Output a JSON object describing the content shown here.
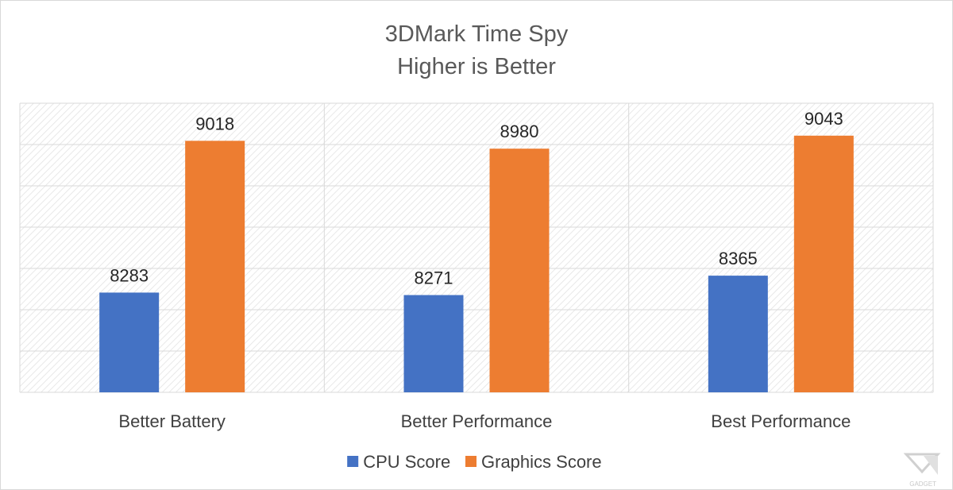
{
  "chart_data": {
    "type": "bar",
    "title": "3DMark Time Spy",
    "subtitle": "Higher is Better",
    "categories": [
      "Better Battery",
      "Better Performance",
      "Best Performance"
    ],
    "series": [
      {
        "name": "CPU Score",
        "values": [
          8283,
          8271,
          8365
        ],
        "color": "#4472c4"
      },
      {
        "name": "Graphics Score",
        "values": [
          9018,
          8980,
          9043
        ],
        "color": "#ed7d31"
      }
    ],
    "ylim": [
      7800,
      9200
    ],
    "grid": true,
    "plot_background": "diagonal-hatch",
    "legend": "bottom",
    "data_labels": true
  },
  "watermark": {
    "text": "GADGET",
    "color": "#c8c8c8"
  }
}
